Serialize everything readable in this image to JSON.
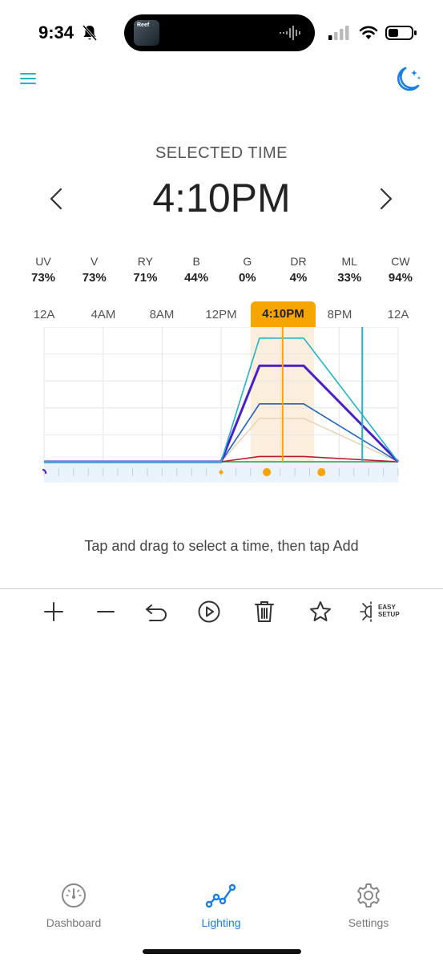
{
  "status_bar": {
    "time": "9:34",
    "island_art_text": "Reef"
  },
  "header": {
    "selected_label": "SELECTED TIME",
    "selected_time": "4:10PM"
  },
  "channels": [
    {
      "name": "UV",
      "value": "73%"
    },
    {
      "name": "V",
      "value": "73%"
    },
    {
      "name": "RY",
      "value": "71%"
    },
    {
      "name": "B",
      "value": "44%"
    },
    {
      "name": "G",
      "value": "0%"
    },
    {
      "name": "DR",
      "value": "4%"
    },
    {
      "name": "ML",
      "value": "33%"
    },
    {
      "name": "CW",
      "value": "94%"
    }
  ],
  "timeline": {
    "ticks": [
      "12A",
      "4AM",
      "8AM",
      "12PM",
      "8PM",
      "12A"
    ],
    "selected_badge": "4:10PM"
  },
  "chart_data": {
    "type": "line",
    "x_unit": "hour",
    "xlim": [
      0,
      24
    ],
    "ylim": [
      0,
      100
    ],
    "selected_hour": 16.17,
    "current_hour": 21.57,
    "highlight_range": [
      14.0,
      18.3
    ],
    "series": [
      {
        "color": "#1fb4c9",
        "x": [
          0,
          12,
          14.6,
          17.6,
          24
        ],
        "y": [
          0,
          0,
          94,
          94,
          0
        ]
      },
      {
        "color": "#4b1fc9",
        "x": [
          0,
          12,
          14.6,
          17.6,
          24
        ],
        "y": [
          0,
          0,
          73,
          73,
          0
        ]
      },
      {
        "color": "#1d62c2",
        "x": [
          0,
          12,
          14.6,
          17.6,
          24
        ],
        "y": [
          0,
          0,
          44,
          44,
          0
        ]
      },
      {
        "color": "#e6d5b8",
        "x": [
          0,
          12,
          14.6,
          17.6,
          24
        ],
        "y": [
          0,
          0,
          33,
          33,
          0
        ]
      },
      {
        "color": "#c0182c",
        "x": [
          0,
          12,
          14.6,
          17.6,
          24
        ],
        "y": [
          0,
          0,
          4,
          4,
          0
        ]
      },
      {
        "color": "#2a9a4a",
        "x": [
          0,
          12,
          14.6,
          17.6,
          24
        ],
        "y": [
          0,
          0,
          0,
          0,
          0
        ]
      }
    ],
    "keyframe_hours": [
      12,
      15.1,
      18.8
    ]
  },
  "hint": "Tap and drag to select a time, then tap Add",
  "toolbar": {
    "easy_setup_line1": "EASY",
    "easy_setup_line2": "SETUP"
  },
  "nav": [
    {
      "label": "Dashboard",
      "active": false
    },
    {
      "label": "Lighting",
      "active": true
    },
    {
      "label": "Settings",
      "active": false
    }
  ],
  "colors": {
    "accent": "#1a7fe0",
    "teal": "#1fb4c9",
    "badge": "#f5a400"
  }
}
